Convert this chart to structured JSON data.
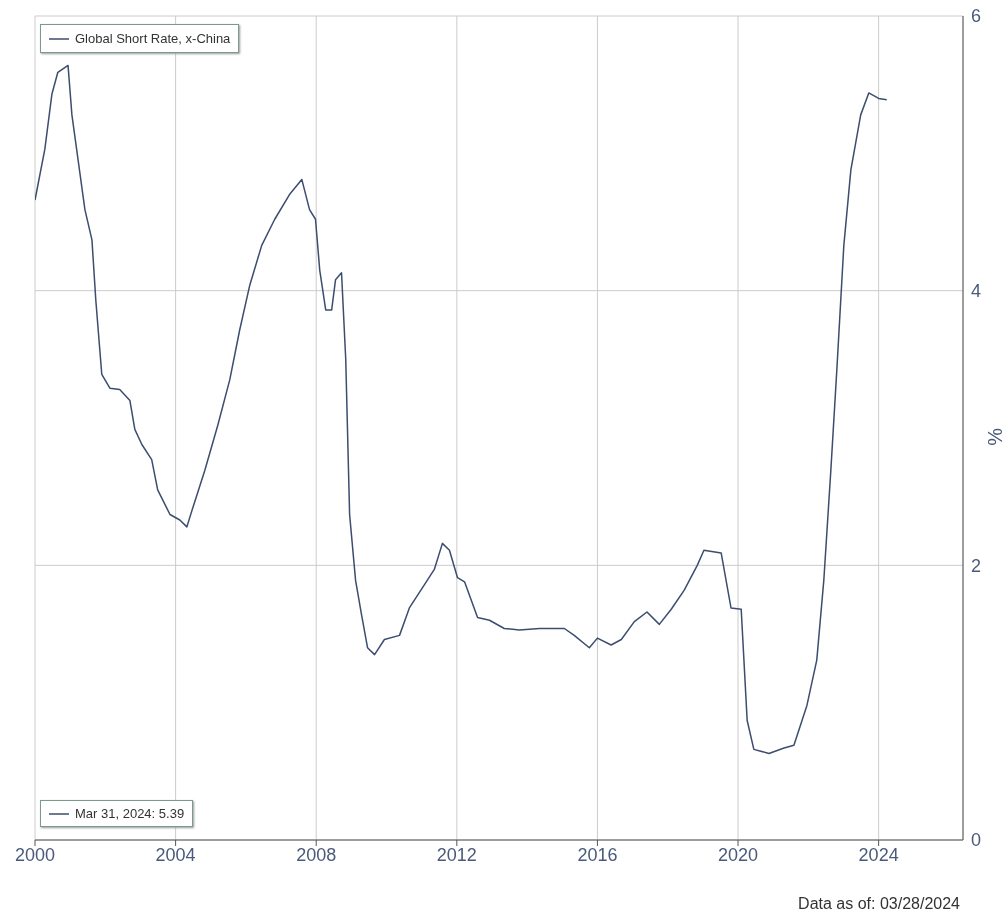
{
  "chart_data": {
    "type": "line",
    "ylabel": "%",
    "annotations": [
      "Mar 31, 2024: 5.39",
      "Data as of: 03/28/2024"
    ],
    "xlim": [
      2000,
      2026.4
    ],
    "xticks": [
      2000,
      2004,
      2008,
      2012,
      2016,
      2020,
      2024
    ],
    "ylim": [
      0,
      6
    ],
    "yticks": [
      0,
      2,
      4,
      6
    ],
    "grid": true,
    "legend": "top left",
    "series": [
      {
        "name": "Global Short Rate, x-China",
        "color": "#3c4d6e",
        "x": [
          2000.0,
          2000.28,
          2000.48,
          2000.65,
          2000.94,
          2001.05,
          2001.42,
          2001.62,
          2001.73,
          2001.9,
          2002.13,
          2002.41,
          2002.7,
          2002.84,
          2003.04,
          2003.32,
          2003.49,
          2003.84,
          2004.12,
          2004.32,
          2004.49,
          2004.83,
          2005.2,
          2005.54,
          2005.82,
          2006.11,
          2006.45,
          2006.82,
          2007.24,
          2007.59,
          2007.81,
          2007.98,
          2008.1,
          2008.27,
          2008.44,
          2008.55,
          2008.72,
          2008.84,
          2008.95,
          2009.12,
          2009.29,
          2009.46,
          2009.66,
          2009.94,
          2010.37,
          2010.65,
          2011.08,
          2011.36,
          2011.59,
          2011.79,
          2012.02,
          2012.22,
          2012.59,
          2012.93,
          2013.35,
          2013.78,
          2014.35,
          2015.06,
          2015.34,
          2015.77,
          2016.0,
          2016.39,
          2016.68,
          2017.05,
          2017.41,
          2017.76,
          2018.1,
          2018.47,
          2018.84,
          2019.03,
          2019.52,
          2019.8,
          2020.09,
          2020.26,
          2020.45,
          2020.88,
          2021.31,
          2021.59,
          2021.96,
          2022.24,
          2022.44,
          2022.64,
          2022.81,
          2023.01,
          2023.21,
          2023.49,
          2023.72,
          2024.0,
          2024.23
        ],
        "values": [
          4.66,
          5.03,
          5.43,
          5.59,
          5.64,
          5.28,
          4.59,
          4.37,
          3.93,
          3.39,
          3.29,
          3.28,
          3.2,
          2.99,
          2.88,
          2.77,
          2.55,
          2.37,
          2.33,
          2.28,
          2.42,
          2.69,
          3.02,
          3.35,
          3.71,
          4.04,
          4.33,
          4.52,
          4.7,
          4.81,
          4.59,
          4.52,
          4.15,
          3.86,
          3.86,
          4.08,
          4.13,
          3.5,
          2.37,
          1.89,
          1.64,
          1.4,
          1.35,
          1.46,
          1.49,
          1.69,
          1.86,
          1.97,
          2.16,
          2.11,
          1.91,
          1.88,
          1.62,
          1.6,
          1.54,
          1.53,
          1.54,
          1.54,
          1.49,
          1.4,
          1.47,
          1.42,
          1.46,
          1.59,
          1.66,
          1.57,
          1.68,
          1.82,
          2.0,
          2.11,
          2.09,
          1.69,
          1.68,
          0.87,
          0.66,
          0.63,
          0.67,
          0.69,
          0.98,
          1.31,
          1.89,
          2.69,
          3.42,
          4.33,
          4.88,
          5.28,
          5.44,
          5.4,
          5.39
        ]
      }
    ]
  }
}
